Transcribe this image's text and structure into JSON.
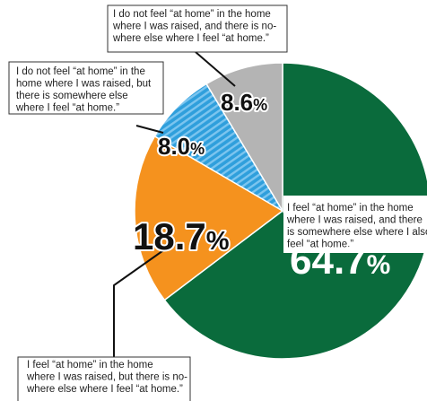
{
  "chart_data": {
    "type": "pie",
    "title": "",
    "start_angle_deg": 0,
    "direction": "clockwise",
    "slices": [
      {
        "label": "I feel “at home” in the home where I was raised, and there is somewhere else where I also feel “at home.”",
        "caption_lines": [
          "I feel “at home” in the home",
          "where I was raised, and there",
          "is somewhere else where I also",
          "feel “at home.”"
        ],
        "value": 64.7,
        "value_label": "64.7%",
        "color": "#0a6b3c",
        "pattern": "solid"
      },
      {
        "label": "I feel “at home” in the home where I was raised, but there is nowhere else where I feel “at home.”",
        "caption_lines": [
          "I feel “at home” in the home",
          "where I was raised, but there is no-",
          "where else where I feel “at home.”"
        ],
        "value": 18.7,
        "value_label": "18.7%",
        "color": "#f5921e",
        "pattern": "solid"
      },
      {
        "label": "I do not feel “at home” in the home where I was raised, but there is somewhere else where I feel “at home.”",
        "caption_lines": [
          "I do not feel “at home” in the",
          "home where I was raised, but",
          "there is somewhere else",
          "where I feel “at home.”"
        ],
        "value": 8.0,
        "value_label": "8.0%",
        "color": "#2f9fdc",
        "pattern": "stripes"
      },
      {
        "label": "I do not feel “at home” in the home where I was raised, and there is nowhere else where I feel “at home.”",
        "caption_lines": [
          "I do not feel “at home” in the home",
          "where I was raised, and there is no-",
          "where else where I feel “at home.”"
        ],
        "value": 8.6,
        "value_label": "8.6%",
        "color": "#b4b4b4",
        "pattern": "solid"
      }
    ]
  }
}
